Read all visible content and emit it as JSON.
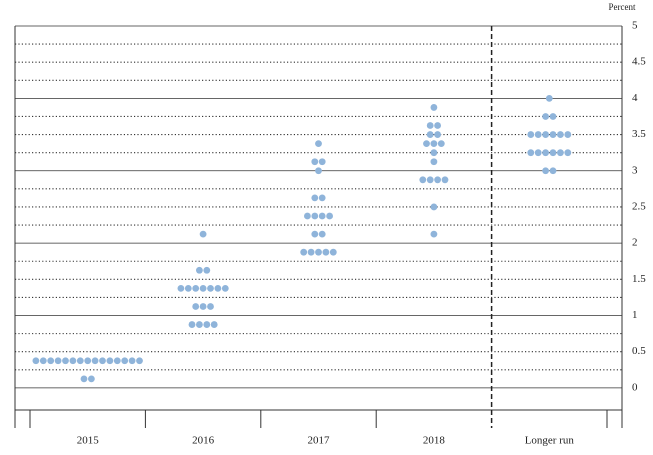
{
  "chart_data": {
    "type": "dot",
    "y_axis_label": "Percent",
    "categories": [
      "2015",
      "2016",
      "2017",
      "2018",
      "Longer run"
    ],
    "dots": [
      [
        {
          "value": 0.375,
          "count": 15
        },
        {
          "value": 0.125,
          "count": 2
        }
      ],
      [
        {
          "value": 2.125,
          "count": 1
        },
        {
          "value": 1.625,
          "count": 2
        },
        {
          "value": 1.375,
          "count": 7
        },
        {
          "value": 1.125,
          "count": 3
        },
        {
          "value": 0.875,
          "count": 4
        }
      ],
      [
        {
          "value": 3.375,
          "count": 1
        },
        {
          "value": 3.125,
          "count": 2
        },
        {
          "value": 3.0,
          "count": 1
        },
        {
          "value": 2.625,
          "count": 2
        },
        {
          "value": 2.375,
          "count": 4
        },
        {
          "value": 2.125,
          "count": 2
        },
        {
          "value": 1.875,
          "count": 5
        }
      ],
      [
        {
          "value": 3.875,
          "count": 1
        },
        {
          "value": 3.625,
          "count": 2
        },
        {
          "value": 3.5,
          "count": 2
        },
        {
          "value": 3.375,
          "count": 3
        },
        {
          "value": 3.25,
          "count": 1
        },
        {
          "value": 3.125,
          "count": 1
        },
        {
          "value": 2.875,
          "count": 4
        },
        {
          "value": 2.5,
          "count": 1
        },
        {
          "value": 2.125,
          "count": 1
        }
      ],
      [
        {
          "value": 4.0,
          "count": 1
        },
        {
          "value": 3.75,
          "count": 2
        },
        {
          "value": 3.5,
          "count": 6
        },
        {
          "value": 3.25,
          "count": 6
        },
        {
          "value": 3.0,
          "count": 2
        }
      ]
    ],
    "color": "#8fb4da",
    "ylim": [
      -0.25,
      5
    ],
    "yticks": [
      0,
      0.5,
      1,
      1.5,
      2,
      2.5,
      3,
      3.5,
      4,
      4.5,
      5
    ],
    "separator_before": "Longer run"
  }
}
